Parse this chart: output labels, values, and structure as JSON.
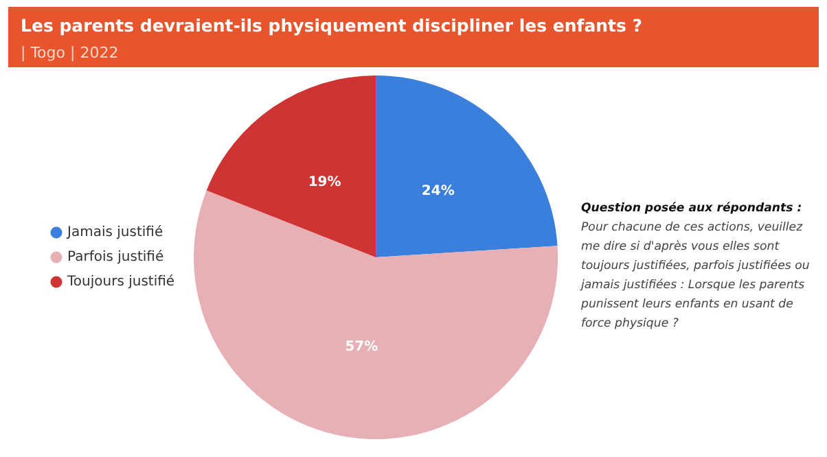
{
  "chart_data": {
    "type": "pie",
    "title": "Les parents devraient-ils physiquement discipliner les enfants ?",
    "subtitle": "| Togo | 2022",
    "categories": [
      "Jamais justifié",
      "Parfois justifié",
      "Toujours justifié"
    ],
    "values": [
      24,
      57,
      19
    ],
    "colors": [
      "#3a7fdc",
      "#e6b0b5",
      "#cf3434"
    ],
    "value_labels": [
      "24%",
      "57%",
      "19%"
    ],
    "legend": "left",
    "annotations": [
      "Question posée aux répondants :",
      "Pour chacune de ces actions, veuillez me dire si d'après vous elles sont toujours justifiées, parfois justifiées ou jamais justifiées : Lorsque les parents punissent leurs enfants en usant de force physique ?"
    ]
  }
}
